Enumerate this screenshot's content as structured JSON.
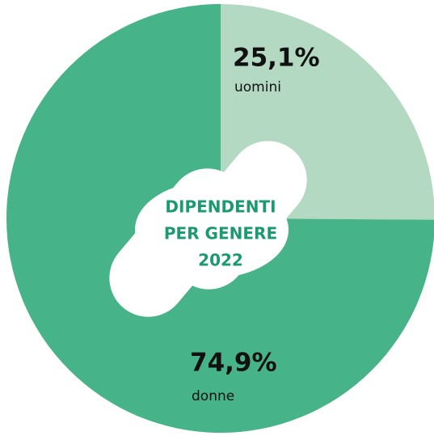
{
  "chart_data": {
    "type": "pie",
    "title": [
      "DIPENDENTI",
      "PER GENERE",
      "2022"
    ],
    "categories": [
      "uomini",
      "donne"
    ],
    "values": [
      25.1,
      74.9
    ],
    "value_labels": [
      "25,1%",
      "74,9%"
    ],
    "colors": [
      "#b3d9c3",
      "#47b388"
    ]
  }
}
